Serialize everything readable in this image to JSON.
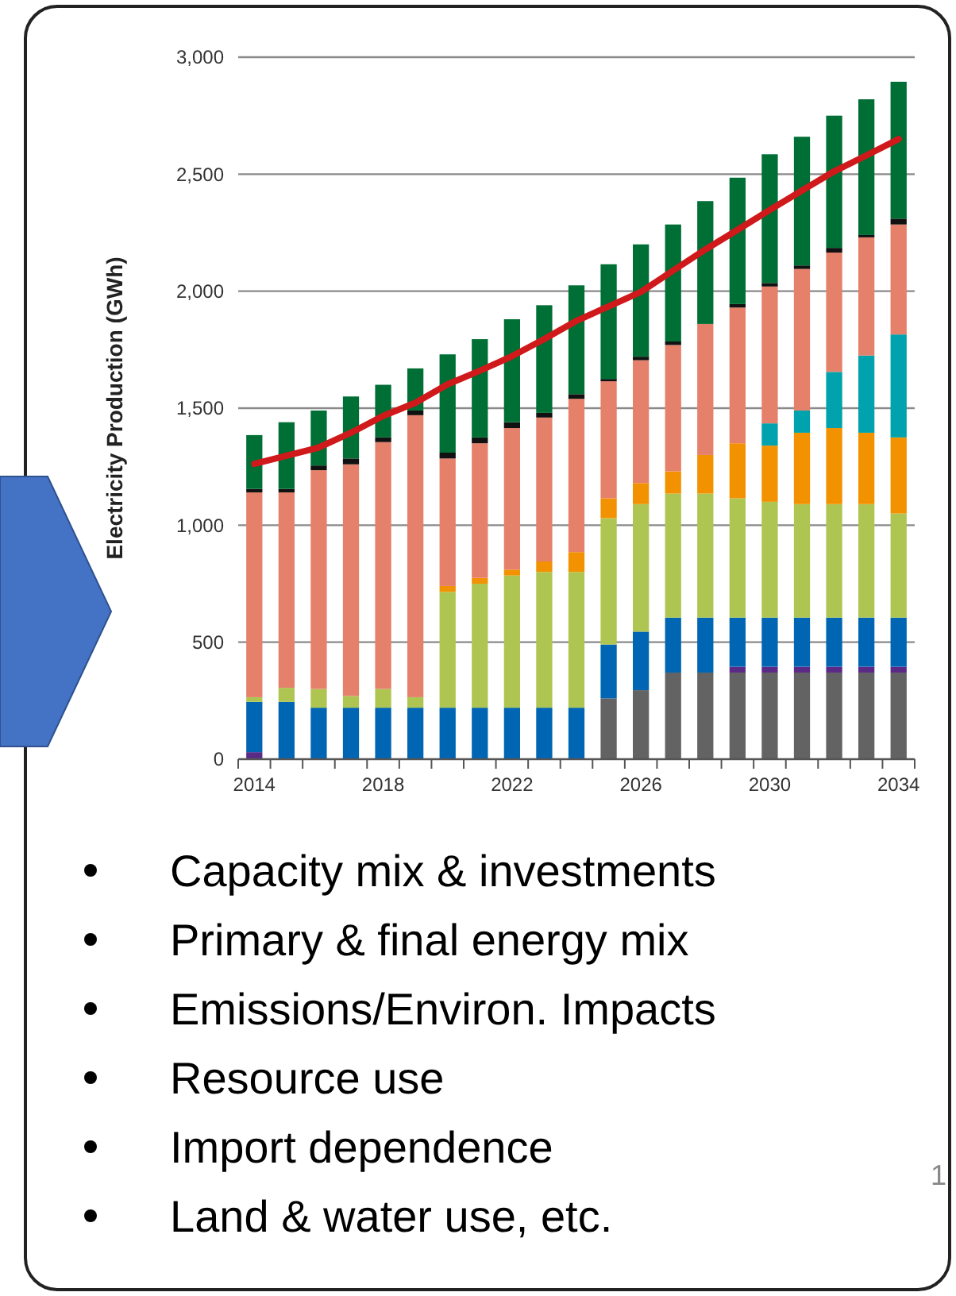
{
  "chart_data": {
    "type": "bar",
    "stacked": true,
    "ylabel": "Electricity Production (GWh)",
    "categories": [
      "2014",
      null,
      null,
      null,
      "2018",
      null,
      null,
      null,
      "2022",
      null,
      null,
      null,
      "2026",
      null,
      null,
      null,
      "2030",
      null,
      null,
      null,
      "2034"
    ],
    "ylim": [
      0,
      3000
    ],
    "yticks": [
      0,
      500,
      {
        "value": 1000,
        "label": "1,000"
      },
      {
        "value": 1500,
        "label": "1,500"
      },
      {
        "value": 2000,
        "label": "2,000"
      },
      {
        "value": 2500,
        "label": "2,500"
      },
      {
        "value": 3000,
        "label": "3,000"
      }
    ],
    "grid": "y",
    "series": [
      {
        "color": "#636363",
        "values": [
          0,
          0,
          0,
          0,
          0,
          0,
          0,
          0,
          0,
          0,
          0,
          260,
          295,
          370,
          370,
          370,
          370,
          370,
          370,
          370,
          370
        ]
      },
      {
        "color": "#5b2a86",
        "values": [
          30,
          0,
          0,
          0,
          0,
          0,
          0,
          0,
          0,
          0,
          0,
          0,
          0,
          0,
          0,
          25,
          25,
          25,
          25,
          25,
          25
        ]
      },
      {
        "color": "#0066b3",
        "values": [
          215,
          245,
          220,
          220,
          220,
          220,
          220,
          220,
          220,
          220,
          220,
          230,
          250,
          235,
          235,
          210,
          210,
          210,
          210,
          210,
          210
        ]
      },
      {
        "color": "#afc552",
        "values": [
          20,
          60,
          80,
          50,
          80,
          45,
          495,
          530,
          565,
          580,
          580,
          540,
          545,
          530,
          530,
          510,
          495,
          485,
          485,
          485,
          445
        ]
      },
      {
        "color": "#f39200",
        "values": [
          0,
          0,
          0,
          0,
          0,
          0,
          25,
          25,
          25,
          45,
          85,
          85,
          90,
          95,
          165,
          235,
          240,
          305,
          325,
          305,
          325
        ]
      },
      {
        "color": "#00a3ad",
        "values": [
          0,
          0,
          0,
          0,
          0,
          0,
          0,
          0,
          0,
          0,
          0,
          0,
          0,
          0,
          0,
          0,
          95,
          95,
          240,
          330,
          440
        ]
      },
      {
        "color": "#e5806a",
        "values": [
          875,
          835,
          935,
          990,
          1055,
          1205,
          545,
          575,
          605,
          615,
          655,
          500,
          525,
          540,
          560,
          580,
          585,
          605,
          510,
          505,
          470
        ]
      },
      {
        "color": "#111111",
        "values": [
          15,
          15,
          20,
          25,
          20,
          20,
          25,
          25,
          25,
          20,
          20,
          10,
          15,
          15,
          0,
          15,
          15,
          15,
          20,
          10,
          25
        ]
      },
      {
        "color": "#006f35",
        "values": [
          230,
          285,
          235,
          265,
          225,
          180,
          420,
          420,
          440,
          460,
          465,
          490,
          480,
          500,
          525,
          540,
          550,
          550,
          565,
          580,
          585
        ]
      },
      {
        "type": "line",
        "color": "#d0191b",
        "values": [
          1262,
          1297,
          1332,
          1395,
          1467,
          1523,
          1602,
          1660,
          1722,
          1795,
          1873,
          1935,
          1997,
          2088,
          2178,
          2262,
          2347,
          2430,
          2512,
          2580,
          2650
        ]
      }
    ],
    "annotations": [
      "Capacity mix & investments",
      "Primary & final energy mix",
      "Emissions/Environ. Impacts",
      "Resource use",
      "Import dependence",
      "Land & water use, etc.",
      "1"
    ]
  }
}
